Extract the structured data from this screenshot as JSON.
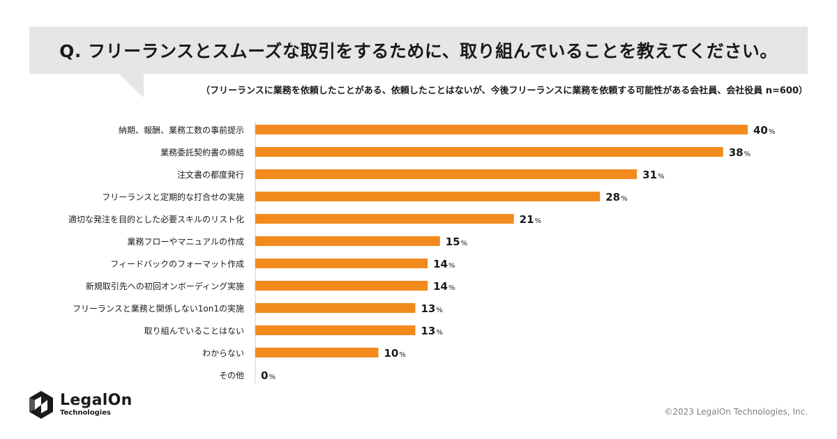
{
  "header": {
    "title": "Q. フリーランスとスムーズな取引をするために、取り組んでいることを教えてください。",
    "subtitle": "（フリーランスに業務を依頼したことがある、依頼したことはないが、今後フリーランスに業務を依頼する可能性がある会社員、会社役員 n=600）"
  },
  "chart_data": {
    "type": "bar",
    "orientation": "horizontal",
    "categories": [
      "納期、報酬、業務工数の事前提示",
      "業務委託契約書の締結",
      "注文書の都度発行",
      "フリーランスと定期的な打合せの実施",
      "適切な発注を目的とした必要スキルのリスト化",
      "業務フローやマニュアルの作成",
      "フィードバックのフォーマット作成",
      "新規取引先への初回オンボーディング実施",
      "フリーランスと業務と関係しない1on1の実施",
      "取り組んでいることはない",
      "わからない",
      "その他"
    ],
    "values": [
      40,
      38,
      31,
      28,
      21,
      15,
      14,
      14,
      13,
      13,
      10,
      0
    ],
    "unit": "%",
    "xlim": [
      0,
      40
    ],
    "bar_color": "#f28a1e",
    "title": "",
    "xlabel": "",
    "ylabel": ""
  },
  "footer": {
    "logo_main": "LegalOn",
    "logo_sub": "Technologies",
    "copyright": "©2023 LegalOn Technologies, Inc."
  }
}
